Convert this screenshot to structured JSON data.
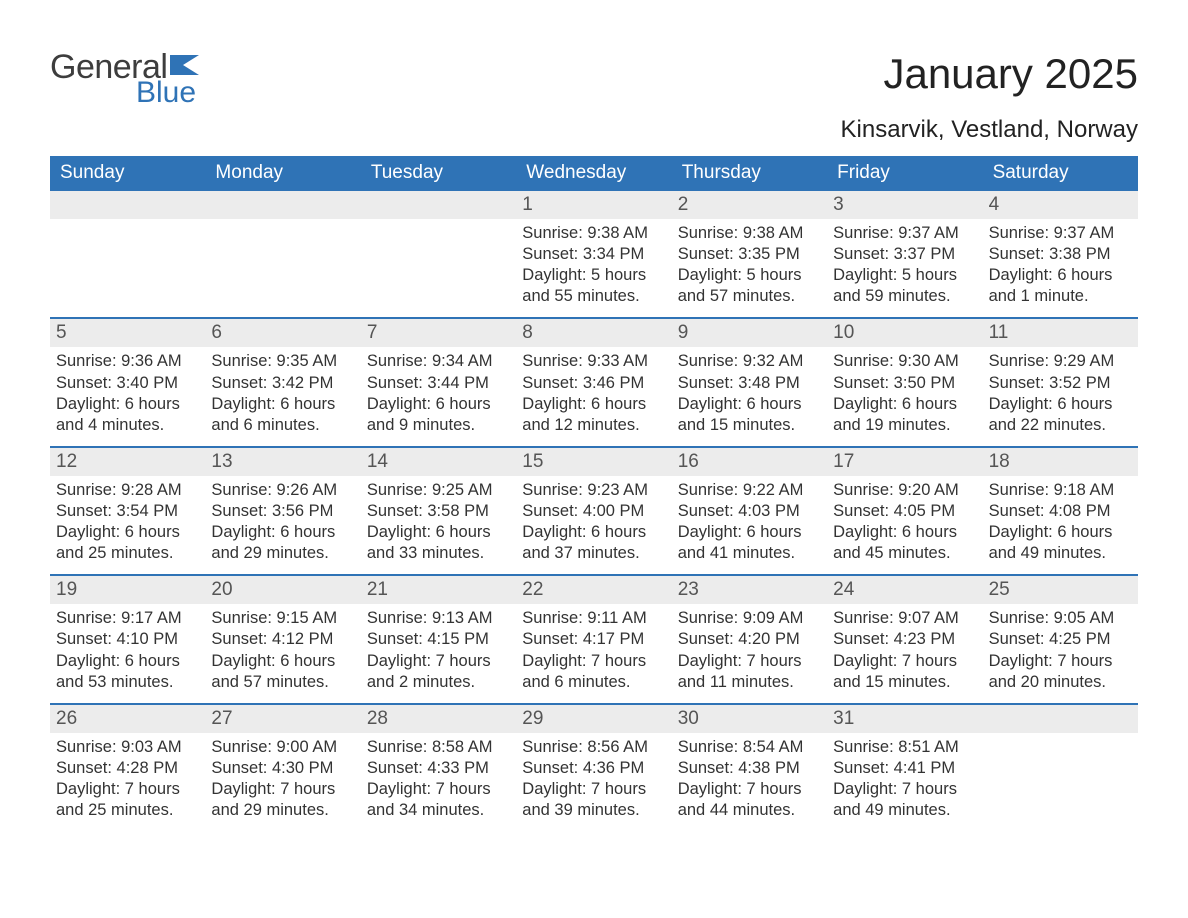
{
  "logo": {
    "word1": "General",
    "word2": "Blue",
    "text_color": "#3d3d3d",
    "accent_color": "#2f73b6"
  },
  "title": "January 2025",
  "location": "Kinsarvik, Vestland, Norway",
  "colors": {
    "header_bg": "#2f73b6",
    "header_text": "#ffffff",
    "daynum_bg": "#ececec",
    "daynum_text": "#555555",
    "body_text": "#333333",
    "week_border": "#2f73b6",
    "page_bg": "#ffffff"
  },
  "day_headers": [
    "Sunday",
    "Monday",
    "Tuesday",
    "Wednesday",
    "Thursday",
    "Friday",
    "Saturday"
  ],
  "weeks": [
    [
      {
        "n": "",
        "sr": "",
        "ss": "",
        "d1": "",
        "d2": ""
      },
      {
        "n": "",
        "sr": "",
        "ss": "",
        "d1": "",
        "d2": ""
      },
      {
        "n": "",
        "sr": "",
        "ss": "",
        "d1": "",
        "d2": ""
      },
      {
        "n": "1",
        "sr": "Sunrise: 9:38 AM",
        "ss": "Sunset: 3:34 PM",
        "d1": "Daylight: 5 hours",
        "d2": "and 55 minutes."
      },
      {
        "n": "2",
        "sr": "Sunrise: 9:38 AM",
        "ss": "Sunset: 3:35 PM",
        "d1": "Daylight: 5 hours",
        "d2": "and 57 minutes."
      },
      {
        "n": "3",
        "sr": "Sunrise: 9:37 AM",
        "ss": "Sunset: 3:37 PM",
        "d1": "Daylight: 5 hours",
        "d2": "and 59 minutes."
      },
      {
        "n": "4",
        "sr": "Sunrise: 9:37 AM",
        "ss": "Sunset: 3:38 PM",
        "d1": "Daylight: 6 hours",
        "d2": "and 1 minute."
      }
    ],
    [
      {
        "n": "5",
        "sr": "Sunrise: 9:36 AM",
        "ss": "Sunset: 3:40 PM",
        "d1": "Daylight: 6 hours",
        "d2": "and 4 minutes."
      },
      {
        "n": "6",
        "sr": "Sunrise: 9:35 AM",
        "ss": "Sunset: 3:42 PM",
        "d1": "Daylight: 6 hours",
        "d2": "and 6 minutes."
      },
      {
        "n": "7",
        "sr": "Sunrise: 9:34 AM",
        "ss": "Sunset: 3:44 PM",
        "d1": "Daylight: 6 hours",
        "d2": "and 9 minutes."
      },
      {
        "n": "8",
        "sr": "Sunrise: 9:33 AM",
        "ss": "Sunset: 3:46 PM",
        "d1": "Daylight: 6 hours",
        "d2": "and 12 minutes."
      },
      {
        "n": "9",
        "sr": "Sunrise: 9:32 AM",
        "ss": "Sunset: 3:48 PM",
        "d1": "Daylight: 6 hours",
        "d2": "and 15 minutes."
      },
      {
        "n": "10",
        "sr": "Sunrise: 9:30 AM",
        "ss": "Sunset: 3:50 PM",
        "d1": "Daylight: 6 hours",
        "d2": "and 19 minutes."
      },
      {
        "n": "11",
        "sr": "Sunrise: 9:29 AM",
        "ss": "Sunset: 3:52 PM",
        "d1": "Daylight: 6 hours",
        "d2": "and 22 minutes."
      }
    ],
    [
      {
        "n": "12",
        "sr": "Sunrise: 9:28 AM",
        "ss": "Sunset: 3:54 PM",
        "d1": "Daylight: 6 hours",
        "d2": "and 25 minutes."
      },
      {
        "n": "13",
        "sr": "Sunrise: 9:26 AM",
        "ss": "Sunset: 3:56 PM",
        "d1": "Daylight: 6 hours",
        "d2": "and 29 minutes."
      },
      {
        "n": "14",
        "sr": "Sunrise: 9:25 AM",
        "ss": "Sunset: 3:58 PM",
        "d1": "Daylight: 6 hours",
        "d2": "and 33 minutes."
      },
      {
        "n": "15",
        "sr": "Sunrise: 9:23 AM",
        "ss": "Sunset: 4:00 PM",
        "d1": "Daylight: 6 hours",
        "d2": "and 37 minutes."
      },
      {
        "n": "16",
        "sr": "Sunrise: 9:22 AM",
        "ss": "Sunset: 4:03 PM",
        "d1": "Daylight: 6 hours",
        "d2": "and 41 minutes."
      },
      {
        "n": "17",
        "sr": "Sunrise: 9:20 AM",
        "ss": "Sunset: 4:05 PM",
        "d1": "Daylight: 6 hours",
        "d2": "and 45 minutes."
      },
      {
        "n": "18",
        "sr": "Sunrise: 9:18 AM",
        "ss": "Sunset: 4:08 PM",
        "d1": "Daylight: 6 hours",
        "d2": "and 49 minutes."
      }
    ],
    [
      {
        "n": "19",
        "sr": "Sunrise: 9:17 AM",
        "ss": "Sunset: 4:10 PM",
        "d1": "Daylight: 6 hours",
        "d2": "and 53 minutes."
      },
      {
        "n": "20",
        "sr": "Sunrise: 9:15 AM",
        "ss": "Sunset: 4:12 PM",
        "d1": "Daylight: 6 hours",
        "d2": "and 57 minutes."
      },
      {
        "n": "21",
        "sr": "Sunrise: 9:13 AM",
        "ss": "Sunset: 4:15 PM",
        "d1": "Daylight: 7 hours",
        "d2": "and 2 minutes."
      },
      {
        "n": "22",
        "sr": "Sunrise: 9:11 AM",
        "ss": "Sunset: 4:17 PM",
        "d1": "Daylight: 7 hours",
        "d2": "and 6 minutes."
      },
      {
        "n": "23",
        "sr": "Sunrise: 9:09 AM",
        "ss": "Sunset: 4:20 PM",
        "d1": "Daylight: 7 hours",
        "d2": "and 11 minutes."
      },
      {
        "n": "24",
        "sr": "Sunrise: 9:07 AM",
        "ss": "Sunset: 4:23 PM",
        "d1": "Daylight: 7 hours",
        "d2": "and 15 minutes."
      },
      {
        "n": "25",
        "sr": "Sunrise: 9:05 AM",
        "ss": "Sunset: 4:25 PM",
        "d1": "Daylight: 7 hours",
        "d2": "and 20 minutes."
      }
    ],
    [
      {
        "n": "26",
        "sr": "Sunrise: 9:03 AM",
        "ss": "Sunset: 4:28 PM",
        "d1": "Daylight: 7 hours",
        "d2": "and 25 minutes."
      },
      {
        "n": "27",
        "sr": "Sunrise: 9:00 AM",
        "ss": "Sunset: 4:30 PM",
        "d1": "Daylight: 7 hours",
        "d2": "and 29 minutes."
      },
      {
        "n": "28",
        "sr": "Sunrise: 8:58 AM",
        "ss": "Sunset: 4:33 PM",
        "d1": "Daylight: 7 hours",
        "d2": "and 34 minutes."
      },
      {
        "n": "29",
        "sr": "Sunrise: 8:56 AM",
        "ss": "Sunset: 4:36 PM",
        "d1": "Daylight: 7 hours",
        "d2": "and 39 minutes."
      },
      {
        "n": "30",
        "sr": "Sunrise: 8:54 AM",
        "ss": "Sunset: 4:38 PM",
        "d1": "Daylight: 7 hours",
        "d2": "and 44 minutes."
      },
      {
        "n": "31",
        "sr": "Sunrise: 8:51 AM",
        "ss": "Sunset: 4:41 PM",
        "d1": "Daylight: 7 hours",
        "d2": "and 49 minutes."
      },
      {
        "n": "",
        "sr": "",
        "ss": "",
        "d1": "",
        "d2": ""
      }
    ]
  ]
}
